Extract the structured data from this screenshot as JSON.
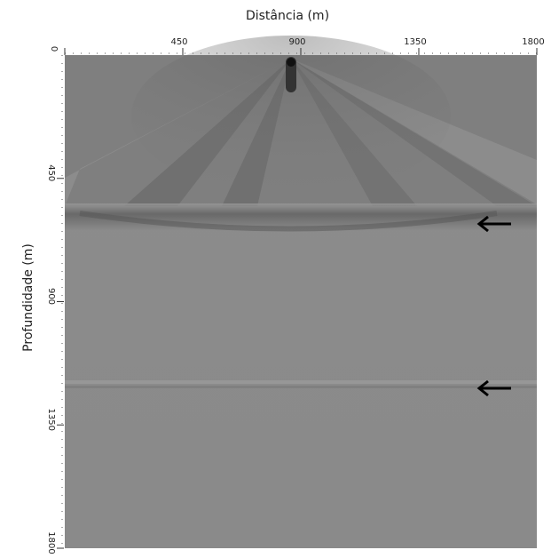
{
  "chart_data": {
    "type": "image",
    "xlabel": "Distância (m)",
    "ylabel": "Profundidade (m)",
    "xlim": [
      0,
      1800
    ],
    "xticks": [
      0,
      450,
      900,
      1350,
      1800
    ],
    "ylim": [
      0,
      1800
    ],
    "yticks": [
      450,
      900,
      1350,
      1800
    ]
  }
}
